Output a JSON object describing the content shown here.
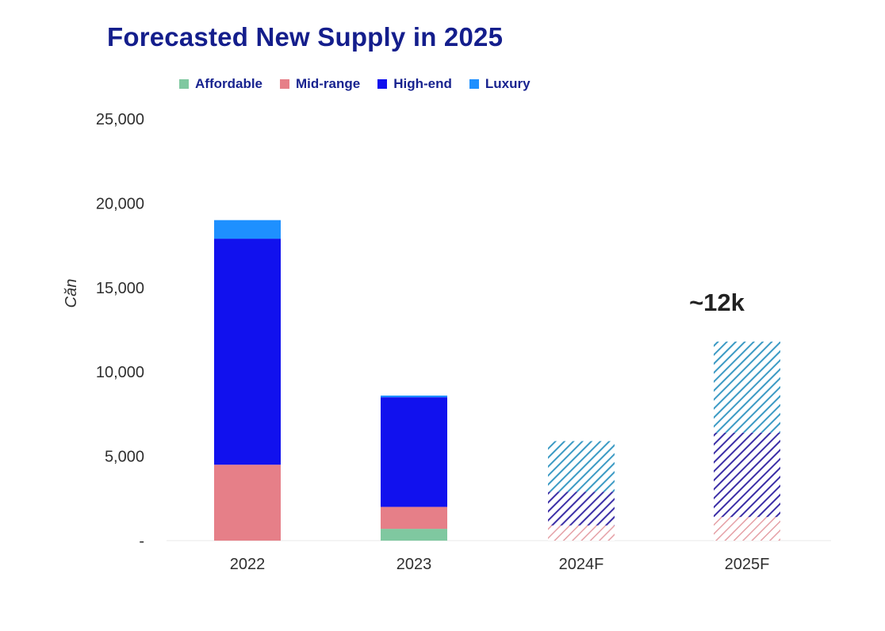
{
  "title": "Forecasted New Supply in 2025",
  "colors": {
    "title": "#141e8c",
    "axis_text": "#2f2f2f",
    "affordable": "#7fc8a0",
    "mid_range": "#e67f88",
    "high_end": "#1111ee",
    "luxury": "#1e90ff",
    "forecast_affordable": "#9bd7b7",
    "forecast_mid_range": "#e5a0a6",
    "forecast_high_end": "#3c2fa7",
    "forecast_luxury": "#3b9ac4"
  },
  "legend": [
    {
      "label": "Affordable",
      "color": "#7fc8a0"
    },
    {
      "label": "Mid-range",
      "color": "#e67f88"
    },
    {
      "label": "High-end",
      "color": "#1111ee"
    },
    {
      "label": "Luxury",
      "color": "#1e90ff"
    }
  ],
  "chart_data": {
    "type": "bar",
    "stacked": true,
    "title": "Forecasted New Supply in 2025",
    "xlabel": "",
    "ylabel": "Căn",
    "categories": [
      "2022",
      "2023",
      "2024F",
      "2025F"
    ],
    "forecast_categories": [
      "2024F",
      "2025F"
    ],
    "ylim": [
      0,
      25000
    ],
    "yticks": [
      0,
      5000,
      10000,
      15000,
      20000,
      25000
    ],
    "ytick_labels": [
      "-",
      "5,000",
      "10,000",
      "15,000",
      "20,000",
      "25,000"
    ],
    "grid": false,
    "legend_position": "top",
    "series": [
      {
        "name": "Affordable",
        "values": [
          0,
          700,
          0,
          0
        ]
      },
      {
        "name": "Mid-range",
        "values": [
          4500,
          1300,
          900,
          1400
        ]
      },
      {
        "name": "High-end",
        "values": [
          13400,
          6500,
          2000,
          5000
        ]
      },
      {
        "name": "Luxury",
        "values": [
          1100,
          100,
          3000,
          5400
        ]
      }
    ],
    "annotations": [
      {
        "category": "2025F",
        "text": "~12k"
      }
    ]
  }
}
